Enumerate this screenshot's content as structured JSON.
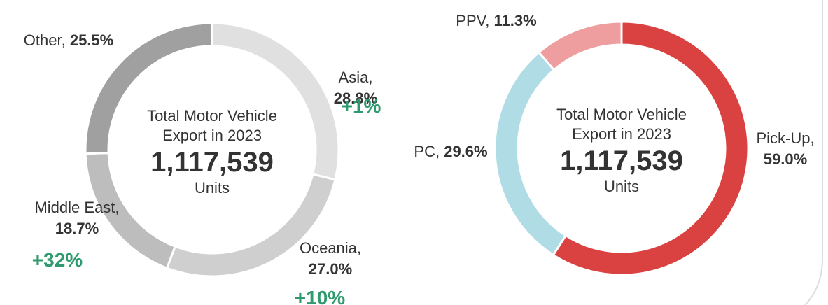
{
  "chart_data": [
    {
      "type": "donut",
      "categories": [
        "Asia,",
        "Oceania,",
        "Middle East,",
        "Other,"
      ],
      "values": [
        28.8,
        27.0,
        18.7,
        25.5
      ],
      "value_labels": [
        "28.8%",
        "27.0%",
        "18.7%",
        "25.5%"
      ],
      "change_labels": [
        "+1%",
        "+10%",
        "+32%",
        null
      ],
      "colors": [
        "#e0e0e0",
        "#cfcfcf",
        "#bdbdbd",
        "#a0a0a0"
      ],
      "center_text": "Total Motor Vehicle Export in 2023",
      "total": 1117539,
      "total_label": "1,117,539",
      "unit": "Units"
    },
    {
      "type": "donut",
      "categories": [
        "Pick-Up,",
        "PC,",
        "PPV,"
      ],
      "values": [
        59.0,
        29.6,
        11.3
      ],
      "value_labels": [
        "59.0%",
        "29.6%",
        "11.3%"
      ],
      "colors": [
        "#da4141",
        "#b0dce6",
        "#ee9e9f"
      ],
      "center_text": "Total Motor Vehicle Export in 2023",
      "total": 1117539,
      "total_label": "1,117,539",
      "unit": "Units"
    }
  ]
}
